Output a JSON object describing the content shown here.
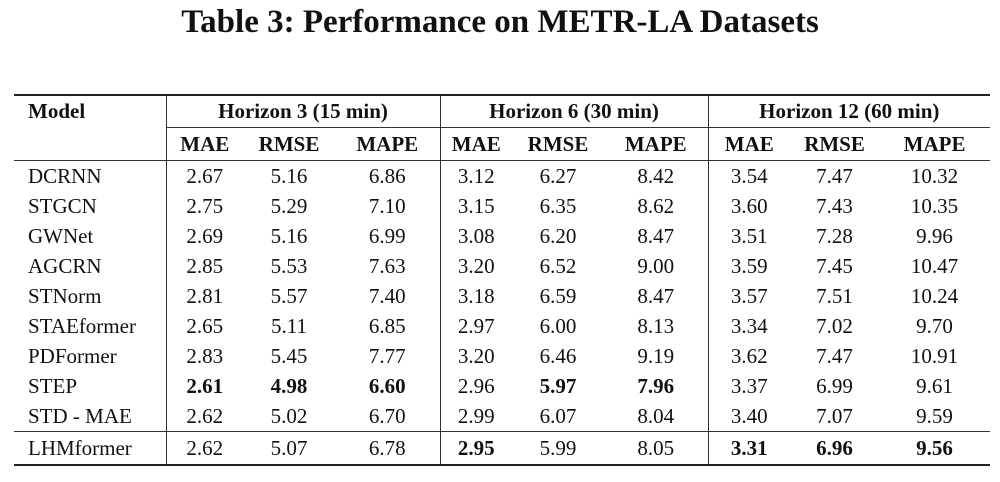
{
  "title": "Table 3: Performance on METR-LA Datasets",
  "table": {
    "model_header": "Model",
    "horizons": [
      {
        "label": "Horizon 3 (15 min)"
      },
      {
        "label": "Horizon 6 (30 min)"
      },
      {
        "label": "Horizon 12 (60 min)"
      }
    ],
    "metrics": [
      "MAE",
      "RMSE",
      "MAPE",
      "MAE",
      "RMSE",
      "MAPE",
      "MAE",
      "RMSE",
      "MAPE"
    ],
    "rows": [
      {
        "model": "DCRNN",
        "values": [
          "2.67",
          "5.16",
          "6.86",
          "3.12",
          "6.27",
          "8.42",
          "3.54",
          "7.47",
          "10.32"
        ],
        "bold": []
      },
      {
        "model": "STGCN",
        "values": [
          "2.75",
          "5.29",
          "7.10",
          "3.15",
          "6.35",
          "8.62",
          "3.60",
          "7.43",
          "10.35"
        ],
        "bold": []
      },
      {
        "model": "GWNet",
        "values": [
          "2.69",
          "5.16",
          "6.99",
          "3.08",
          "6.20",
          "8.47",
          "3.51",
          "7.28",
          "9.96"
        ],
        "bold": []
      },
      {
        "model": "AGCRN",
        "values": [
          "2.85",
          "5.53",
          "7.63",
          "3.20",
          "6.52",
          "9.00",
          "3.59",
          "7.45",
          "10.47"
        ],
        "bold": []
      },
      {
        "model": "STNorm",
        "values": [
          "2.81",
          "5.57",
          "7.40",
          "3.18",
          "6.59",
          "8.47",
          "3.57",
          "7.51",
          "10.24"
        ],
        "bold": []
      },
      {
        "model": "STAEformer",
        "values": [
          "2.65",
          "5.11",
          "6.85",
          "2.97",
          "6.00",
          "8.13",
          "3.34",
          "7.02",
          "9.70"
        ],
        "bold": []
      },
      {
        "model": "PDFormer",
        "values": [
          "2.83",
          "5.45",
          "7.77",
          "3.20",
          "6.46",
          "9.19",
          "3.62",
          "7.47",
          "10.91"
        ],
        "bold": []
      },
      {
        "model": "STEP",
        "values": [
          "2.61",
          "4.98",
          "6.60",
          "2.96",
          "5.97",
          "7.96",
          "3.37",
          "6.99",
          "9.61"
        ],
        "bold": [
          0,
          1,
          2,
          4,
          5
        ]
      },
      {
        "model": "STD - MAE",
        "values": [
          "2.62",
          "5.02",
          "6.70",
          "2.99",
          "6.07",
          "8.04",
          "3.40",
          "7.07",
          "9.59"
        ],
        "bold": []
      }
    ],
    "final_row": {
      "model": "LHMformer",
      "values": [
        "2.62",
        "5.07",
        "6.78",
        "2.95",
        "5.99",
        "8.05",
        "3.31",
        "6.96",
        "9.56"
      ],
      "bold": [
        3,
        6,
        7,
        8
      ]
    }
  }
}
